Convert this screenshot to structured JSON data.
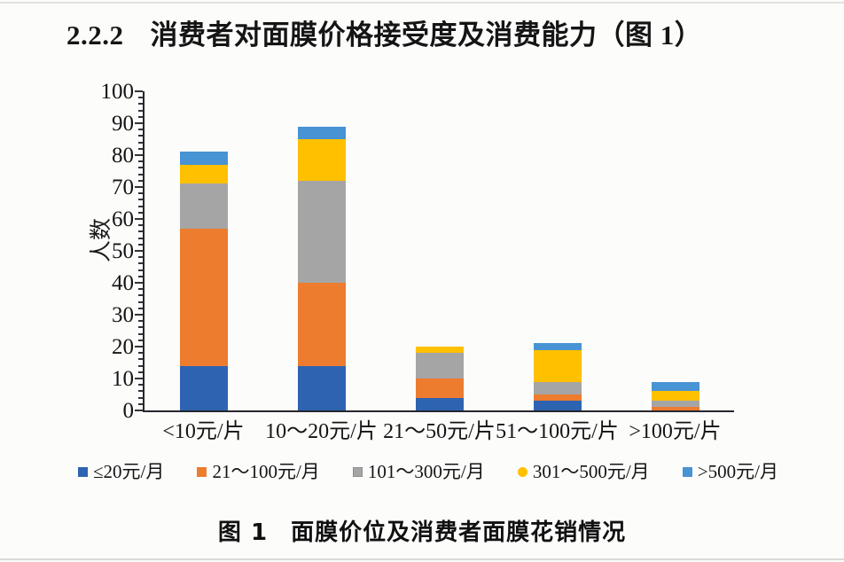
{
  "page": {
    "section_number": "2.2.2",
    "section_title": "消费者对面膜价格接受度及消费能力（图 1）",
    "caption_number": "图 1",
    "caption_text": "面膜价位及消费者面膜花销情况"
  },
  "chart_data": {
    "type": "bar",
    "stacked": true,
    "title": "",
    "xlabel": "",
    "ylabel": "人数",
    "ylim": [
      0,
      100
    ],
    "ytick_step": 10,
    "ytick_minor_step": 2,
    "grid": false,
    "legend_position": "bottom",
    "categories": [
      "<10元/片",
      "10～20元/片",
      "21～50元/片",
      "51～100元/片",
      ">100元/片"
    ],
    "series": [
      {
        "name": "≤20元/月",
        "color": "#2E63B2",
        "marker": "square",
        "values": [
          14,
          14,
          4,
          3,
          0
        ]
      },
      {
        "name": "21～100元/月",
        "color": "#ED7C2F",
        "marker": "square",
        "values": [
          43,
          26,
          6,
          2,
          1
        ]
      },
      {
        "name": "101～300元/月",
        "color": "#A5A5A5",
        "marker": "textured-square",
        "values": [
          14,
          32,
          8,
          4,
          2
        ]
      },
      {
        "name": "301～500元/月",
        "color": "#FFC000",
        "marker": "circle",
        "values": [
          6,
          13,
          2,
          10,
          3
        ]
      },
      {
        "name": ">500元/月",
        "color": "#4793D4",
        "marker": "square",
        "values": [
          4,
          4,
          0,
          2,
          3
        ]
      }
    ],
    "totals": [
      81,
      89,
      20,
      21,
      9
    ]
  }
}
